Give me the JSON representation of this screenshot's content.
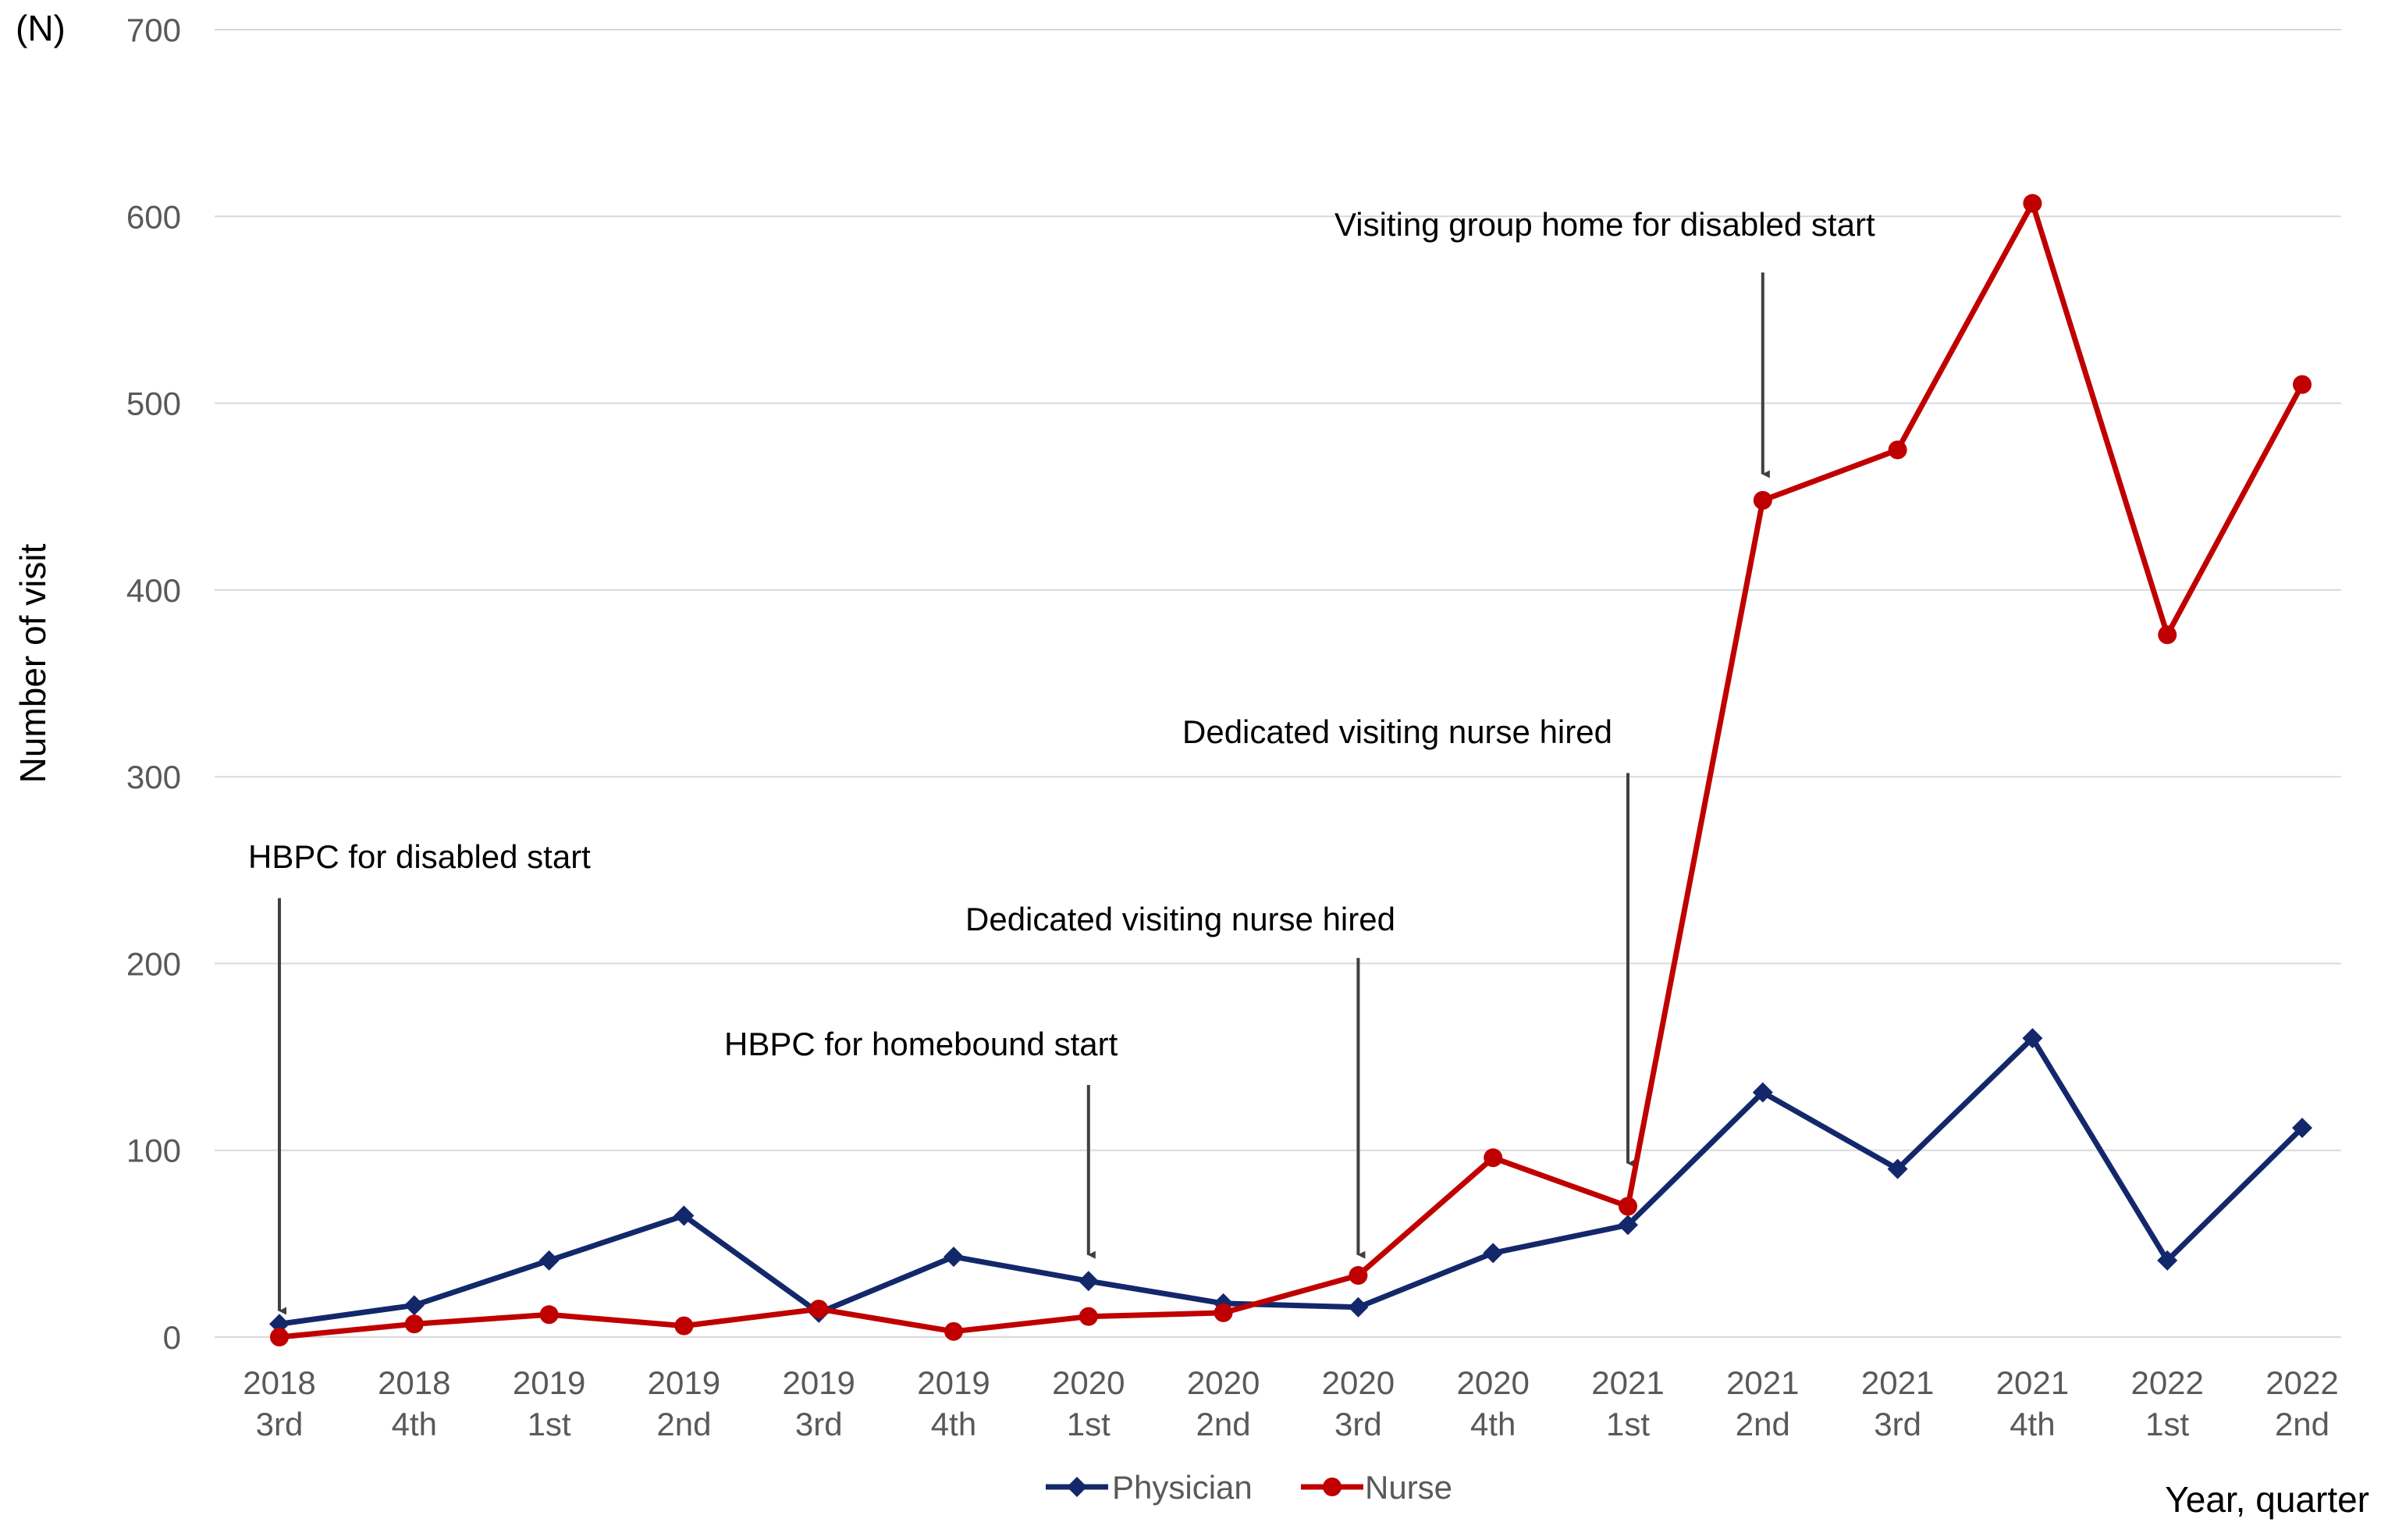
{
  "chart_data": {
    "type": "line",
    "y_unit": "(N)",
    "ylabel": "Number of visit",
    "xlabel": "Year, quarter",
    "ylim": [
      0,
      700
    ],
    "yticks": [
      0,
      100,
      200,
      300,
      400,
      500,
      600,
      700
    ],
    "grid": "horizontal",
    "legend_position": "bottom",
    "categories": [
      [
        "2018",
        "3rd"
      ],
      [
        "2018",
        "4th"
      ],
      [
        "2019",
        "1st"
      ],
      [
        "2019",
        "2nd"
      ],
      [
        "2019",
        "3rd"
      ],
      [
        "2019",
        "4th"
      ],
      [
        "2020",
        "1st"
      ],
      [
        "2020",
        "2nd"
      ],
      [
        "2020",
        "3rd"
      ],
      [
        "2020",
        "4th"
      ],
      [
        "2021",
        "1st"
      ],
      [
        "2021",
        "2nd"
      ],
      [
        "2021",
        "3rd"
      ],
      [
        "2021",
        "4th"
      ],
      [
        "2022",
        "1st"
      ],
      [
        "2022",
        "2nd"
      ]
    ],
    "series": [
      {
        "name": "Physician",
        "color": "#13286b",
        "marker": "diamond",
        "values": [
          7,
          17,
          41,
          65,
          13,
          43,
          30,
          18,
          16,
          45,
          60,
          131,
          90,
          160,
          41,
          112
        ]
      },
      {
        "name": "Nurse",
        "color": "#c00000",
        "marker": "circle",
        "values": [
          0,
          7,
          12,
          6,
          15,
          3,
          11,
          13,
          33,
          96,
          70,
          448,
          475,
          607,
          376,
          510
        ]
      }
    ],
    "annotations": [
      {
        "text": "HBPC for disabled start",
        "category_index": 0,
        "arrow_from": 235,
        "arrow_to": 14
      },
      {
        "text": "HBPC for homebound start",
        "category_index": 6,
        "arrow_from": 135,
        "arrow_to": 44
      },
      {
        "text": "Dedicated visiting nurse hired",
        "category_index": 8,
        "arrow_from": 203,
        "arrow_to": 44
      },
      {
        "text": "Dedicated visiting nurse hired",
        "category_index": 10,
        "arrow_from": 302,
        "arrow_to": 93
      },
      {
        "text": "Visiting group home for disabled start",
        "category_index": 11,
        "arrow_from": 570,
        "arrow_to": 462
      }
    ]
  }
}
